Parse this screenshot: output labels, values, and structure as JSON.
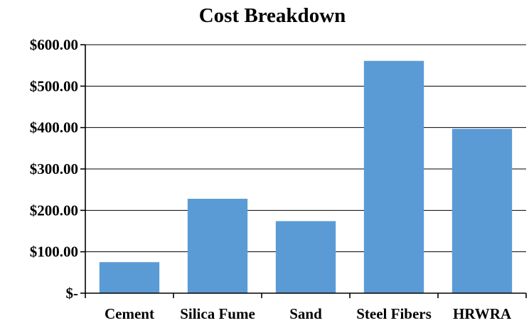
{
  "chart_data": {
    "type": "bar",
    "title": "Cost Breakdown",
    "xlabel": "",
    "ylabel": "",
    "categories": [
      "Cement",
      "Silica Fume",
      "Sand",
      "Steel Fibers",
      "HRWRA"
    ],
    "values": [
      75,
      228,
      174,
      561,
      397
    ],
    "y_ticks": [
      0,
      100,
      200,
      300,
      400,
      500,
      600
    ],
    "y_tick_labels": [
      "$-",
      "$100.00",
      "$200.00",
      "$300.00",
      "$400.00",
      "$500.00",
      "$600.00"
    ],
    "ylim": [
      0,
      600
    ],
    "grid": true,
    "legend": "none",
    "bar_color": "#5b9bd5"
  }
}
